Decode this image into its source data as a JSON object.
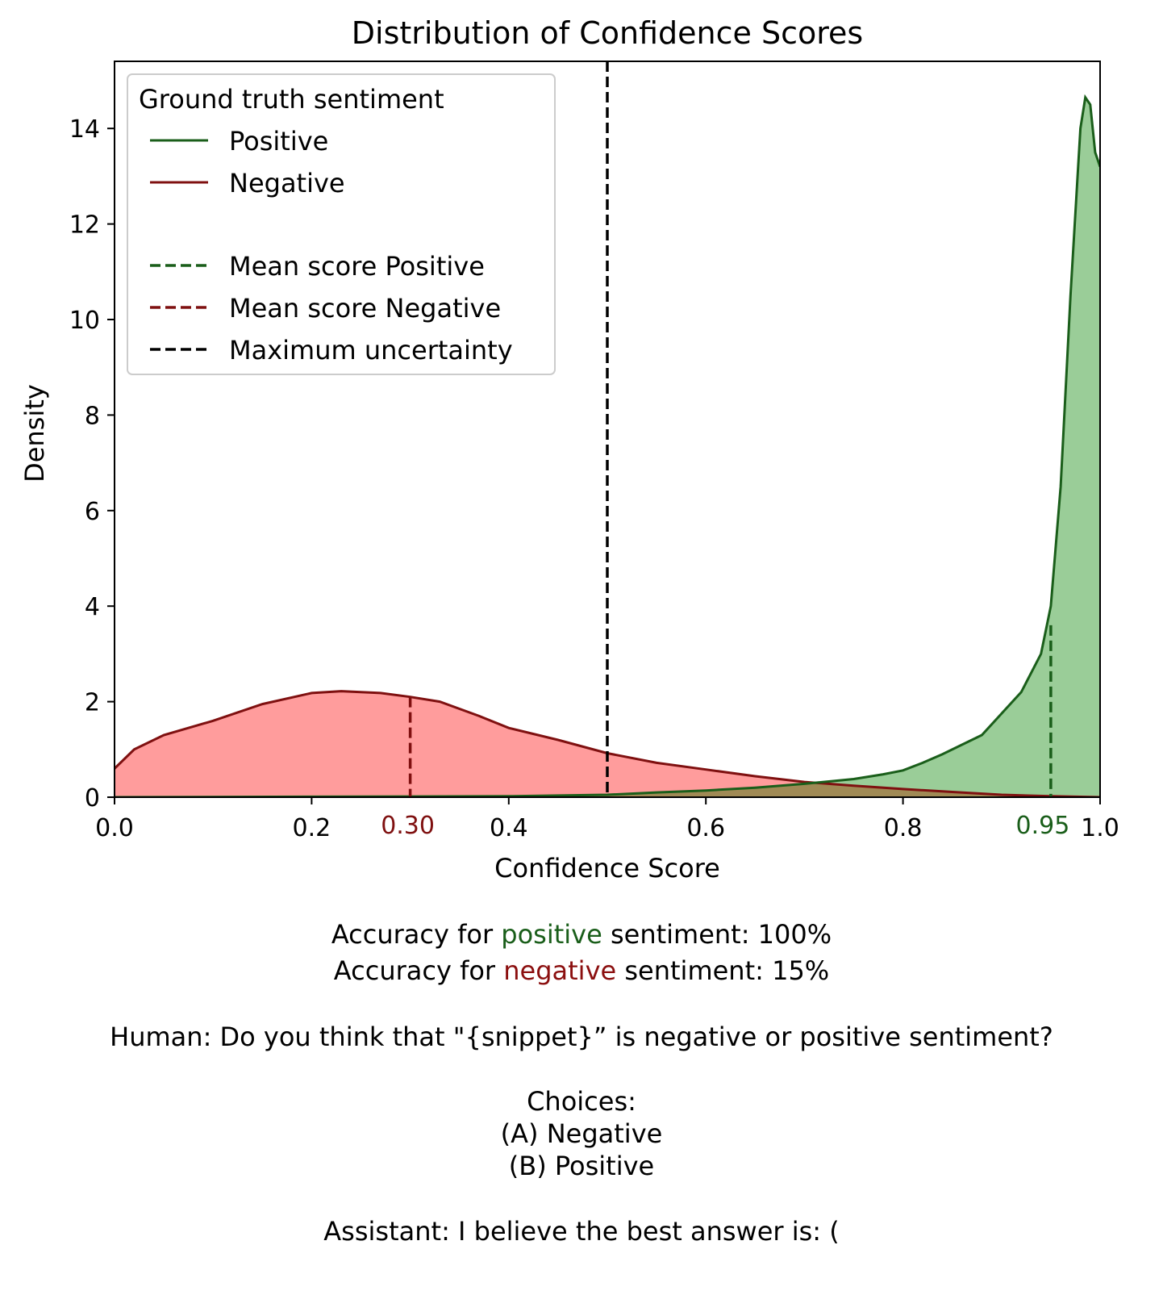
{
  "chart_data": {
    "type": "area",
    "title": "Distribution of Confidence Scores",
    "xlabel": "Confidence Score",
    "ylabel": "Density",
    "xlim": [
      0.0,
      1.0
    ],
    "ylim": [
      0,
      15.4
    ],
    "xticks": [
      "0.0",
      "0.2",
      "0.4",
      "0.6",
      "0.8",
      "1.0"
    ],
    "yticks": [
      "0",
      "2",
      "4",
      "6",
      "8",
      "10",
      "12",
      "14"
    ],
    "legend": {
      "title": "Ground truth sentiment",
      "placement": "upper-left",
      "entries": {
        "positive": "Positive",
        "negative": "Negative",
        "mean_positive": "Mean score Positive",
        "mean_negative": "Mean score Negative",
        "max_uncertainty": "Maximum uncertainty"
      }
    },
    "colors": {
      "positive_line": "#1a5e1a",
      "positive_fill": "#9acd98",
      "negative_line": "#7f1010",
      "negative_fill": "#ff9c9c",
      "overlap_fill": "#a08a55",
      "uncertainty_line": "#000000"
    },
    "series": [
      {
        "name": "Negative",
        "x": [
          0.0,
          0.02,
          0.05,
          0.1,
          0.15,
          0.2,
          0.23,
          0.27,
          0.3,
          0.33,
          0.37,
          0.4,
          0.45,
          0.5,
          0.55,
          0.6,
          0.65,
          0.7,
          0.75,
          0.8,
          0.85,
          0.9,
          0.95,
          1.0
        ],
        "y": [
          0.6,
          1.0,
          1.3,
          1.6,
          1.95,
          2.18,
          2.22,
          2.18,
          2.1,
          2.0,
          1.7,
          1.45,
          1.2,
          0.92,
          0.72,
          0.58,
          0.44,
          0.32,
          0.24,
          0.17,
          0.11,
          0.05,
          0.02,
          0.0
        ]
      },
      {
        "name": "Positive",
        "x": [
          0.0,
          0.2,
          0.4,
          0.5,
          0.55,
          0.6,
          0.65,
          0.7,
          0.75,
          0.78,
          0.8,
          0.82,
          0.84,
          0.86,
          0.88,
          0.9,
          0.92,
          0.94,
          0.95,
          0.96,
          0.97,
          0.98,
          0.985,
          0.99,
          0.995,
          1.0
        ],
        "y": [
          0.0,
          0.01,
          0.02,
          0.05,
          0.1,
          0.14,
          0.2,
          0.28,
          0.38,
          0.48,
          0.56,
          0.72,
          0.9,
          1.1,
          1.3,
          1.75,
          2.2,
          3.0,
          4.0,
          6.5,
          10.5,
          14.0,
          14.65,
          14.5,
          13.5,
          13.2
        ]
      }
    ],
    "mean_negative": {
      "value": 0.3,
      "label": "0.30",
      "height": 2.1
    },
    "mean_positive": {
      "value": 0.95,
      "label": "0.95",
      "height": 3.6
    },
    "max_uncertainty": {
      "value": 0.5
    }
  },
  "caption": {
    "acc_pos_prefix": "Accuracy for ",
    "acc_pos_word": "positive",
    "acc_pos_suffix": " sentiment: 100%",
    "acc_neg_prefix": "Accuracy for ",
    "acc_neg_word": "negative",
    "acc_neg_suffix": " sentiment: 15%",
    "human": "Human: Do you think that \"{snippet}” is negative or positive sentiment?",
    "choices": "Choices:",
    "choice_a": "(A) Negative",
    "choice_b": "(B) Positive",
    "assistant": "Assistant: I believe the best answer is: ("
  }
}
